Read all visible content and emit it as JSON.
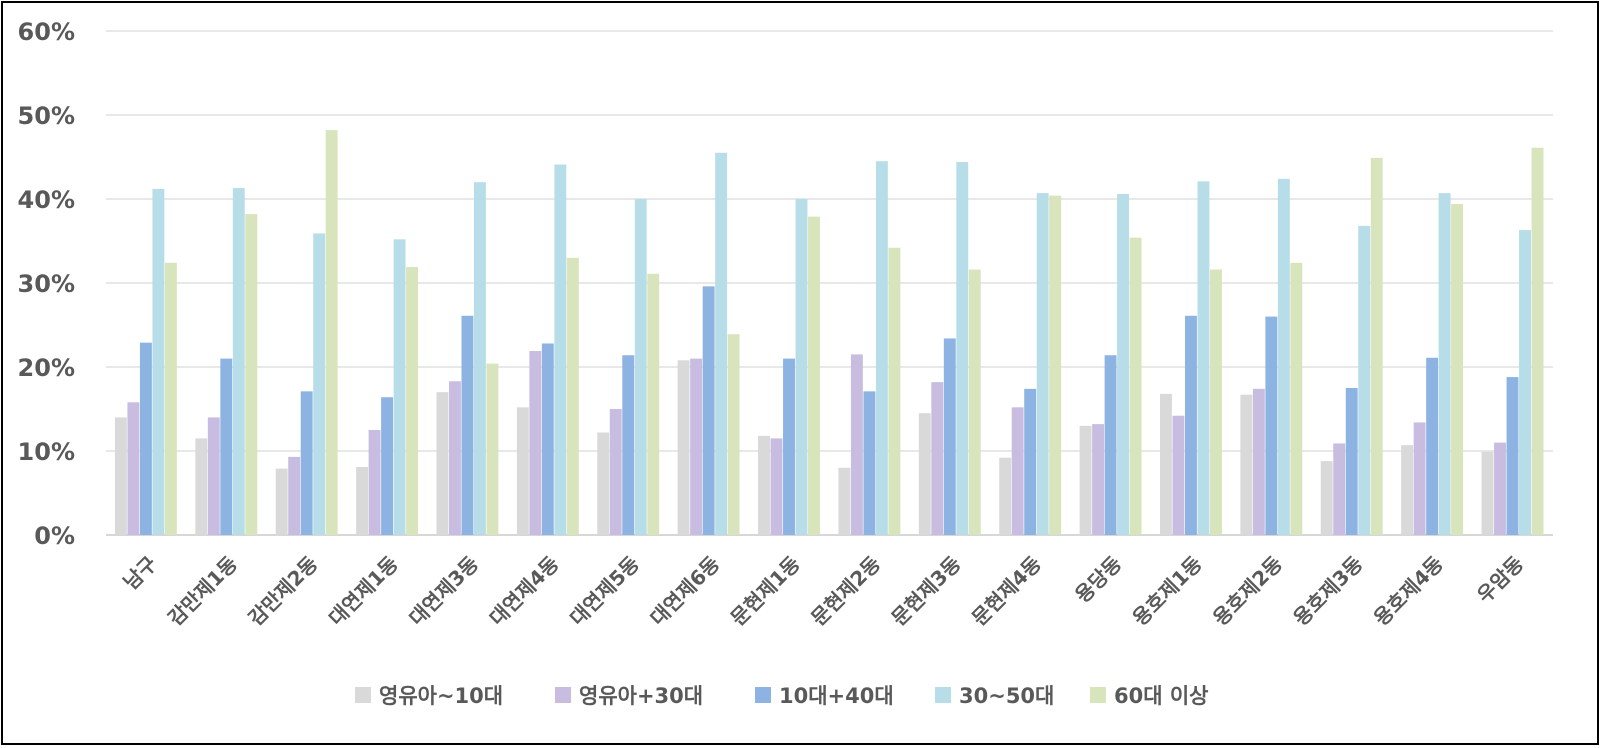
{
  "chart_data": {
    "type": "bar",
    "title": "",
    "xlabel": "",
    "ylabel": "",
    "ylim": [
      0,
      60
    ],
    "y_ticks": [
      "0%",
      "10%",
      "20%",
      "30%",
      "40%",
      "50%",
      "60%"
    ],
    "grid": true,
    "legend_position": "bottom",
    "categories": [
      "남구",
      "감만제1동",
      "감만제2동",
      "대연제1동",
      "대연제3동",
      "대연제4동",
      "대연제5동",
      "대연제6동",
      "문현제1동",
      "문현제2동",
      "문현제3동",
      "문현제4동",
      "용당동",
      "용호제1동",
      "용호제2동",
      "용호제3동",
      "용호제4동",
      "우암동"
    ],
    "series": [
      {
        "name": "영유아~10대",
        "color": "#d9d9d9",
        "values": [
          14.0,
          11.5,
          7.9,
          8.1,
          17.0,
          15.2,
          12.2,
          20.8,
          11.8,
          8.0,
          14.5,
          9.2,
          13.0,
          16.8,
          16.7,
          8.8,
          10.7,
          9.9
        ]
      },
      {
        "name": "영유아+30대",
        "color": "#c8bde0",
        "values": [
          15.8,
          14.0,
          9.3,
          12.5,
          18.3,
          21.9,
          15.0,
          21.0,
          11.5,
          21.5,
          18.2,
          15.2,
          13.2,
          14.2,
          17.4,
          10.9,
          13.4,
          11.0
        ]
      },
      {
        "name": "10대+40대",
        "color": "#8db3e2",
        "values": [
          22.9,
          21.0,
          17.1,
          16.4,
          26.1,
          22.8,
          21.4,
          29.6,
          21.0,
          17.1,
          23.4,
          17.4,
          21.4,
          26.1,
          26.0,
          17.5,
          21.1,
          18.8
        ]
      },
      {
        "name": "30~50대",
        "color": "#b7dde8",
        "values": [
          41.2,
          41.3,
          35.9,
          35.2,
          42.0,
          44.1,
          40.0,
          45.5,
          40.0,
          44.5,
          44.4,
          40.7,
          40.6,
          42.1,
          42.4,
          36.8,
          40.7,
          36.3
        ]
      },
      {
        "name": "60대 이상",
        "color": "#d7e4bc",
        "values": [
          32.4,
          38.2,
          48.2,
          31.9,
          20.4,
          33.0,
          31.1,
          23.9,
          37.9,
          34.2,
          31.6,
          40.4,
          35.4,
          31.6,
          32.4,
          44.9,
          39.4,
          46.1
        ]
      }
    ]
  }
}
